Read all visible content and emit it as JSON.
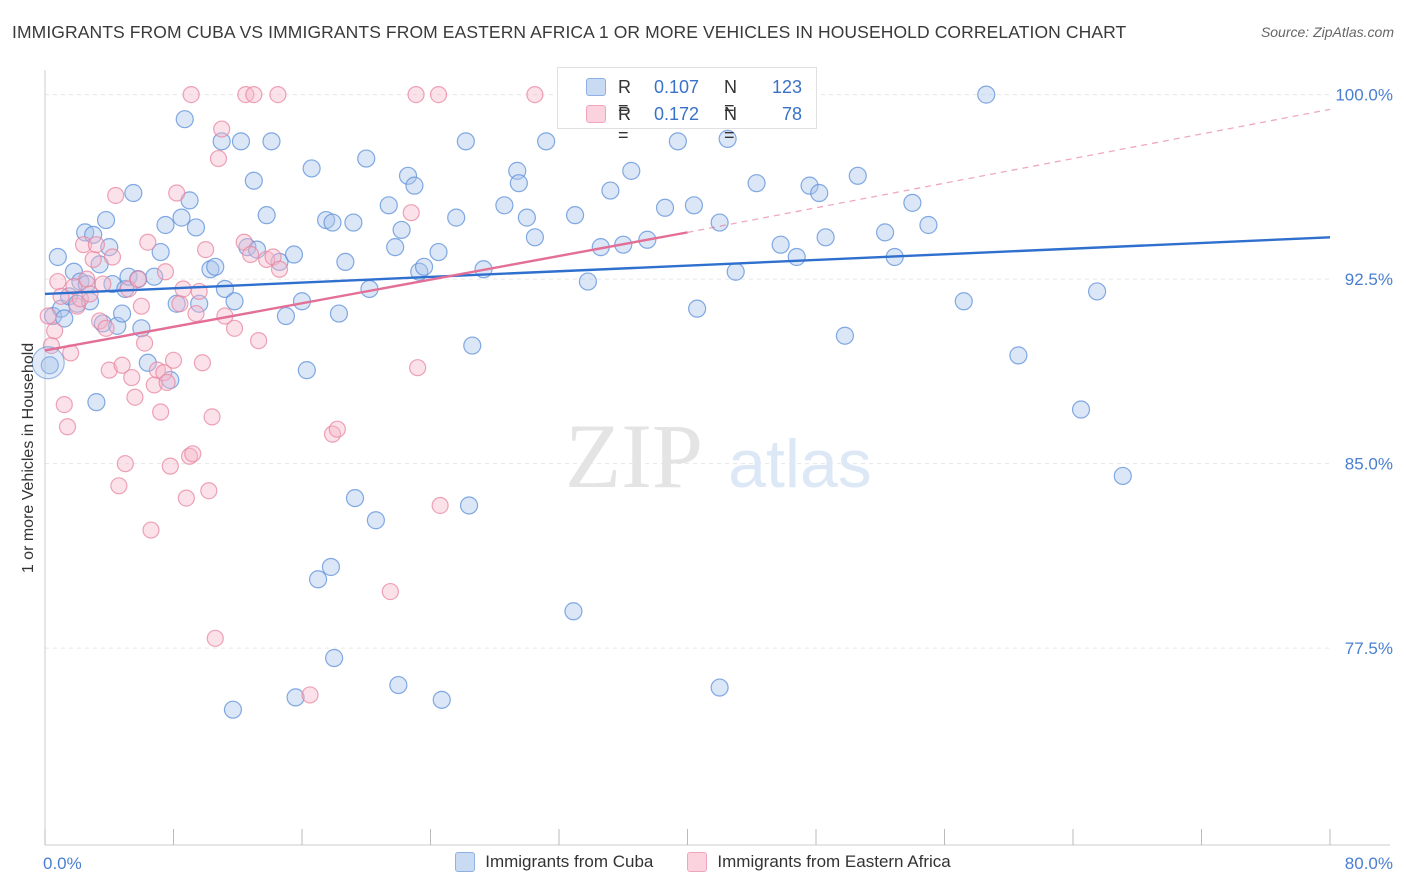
{
  "title": "IMMIGRANTS FROM CUBA VS IMMIGRANTS FROM EASTERN AFRICA 1 OR MORE VEHICLES IN HOUSEHOLD CORRELATION CHART",
  "source": "Source: ZipAtlas.com",
  "watermark": {
    "zip": "ZIP",
    "atlas": "atlas"
  },
  "stats": [
    {
      "r_label": "R =",
      "r_value": "0.107",
      "n_label": "N =",
      "n_value": "123",
      "color": "#a9c4ec"
    },
    {
      "r_label": "R =",
      "r_value": "0.172",
      "n_label": "N =",
      "n_value": "78",
      "color": "#f6b8cb"
    }
  ],
  "legend": [
    {
      "label": "Immigrants from Cuba",
      "color": "#a9c4ec"
    },
    {
      "label": "Immigrants from Eastern Africa",
      "color": "#f6b8cb"
    }
  ],
  "chart_data": {
    "type": "scatter",
    "title": "IMMIGRANTS FROM CUBA VS IMMIGRANTS FROM EASTERN AFRICA 1 OR MORE VEHICLES IN HOUSEHOLD CORRELATION CHART",
    "xlabel": "",
    "ylabel": "1 or more Vehicles in Household",
    "xlim": [
      0,
      80
    ],
    "ylim": [
      69.5,
      101
    ],
    "x_tick_labels": [
      "0.0%",
      "80.0%"
    ],
    "y_ticks": [
      {
        "value": 77.5,
        "label": "77.5%"
      },
      {
        "value": 85.0,
        "label": "85.0%"
      },
      {
        "value": 92.5,
        "label": "92.5%"
      },
      {
        "value": 100.0,
        "label": "100.0%"
      }
    ],
    "grid": true,
    "series": [
      {
        "name": "Immigrants from Cuba",
        "color": "#5b8fd9",
        "fill": "#a9c4ec",
        "trend": {
          "x": [
            0,
            80
          ],
          "y": [
            91.9,
            94.2
          ],
          "color": "#2f6fce",
          "dashed_from": null
        },
        "points": [
          [
            0.3,
            89.0
          ],
          [
            0.5,
            91.0
          ],
          [
            0.8,
            93.4
          ],
          [
            1.0,
            91.3
          ],
          [
            1.2,
            90.9
          ],
          [
            1.5,
            91.8
          ],
          [
            1.8,
            92.8
          ],
          [
            2.0,
            91.5
          ],
          [
            2.2,
            92.4
          ],
          [
            2.5,
            94.4
          ],
          [
            2.6,
            92.3
          ],
          [
            2.8,
            91.6
          ],
          [
            3.0,
            94.3
          ],
          [
            3.2,
            87.5
          ],
          [
            3.4,
            93.1
          ],
          [
            3.6,
            90.7
          ],
          [
            3.8,
            94.9
          ],
          [
            4.0,
            93.8
          ],
          [
            4.2,
            92.3
          ],
          [
            4.5,
            90.6
          ],
          [
            4.8,
            91.1
          ],
          [
            5.0,
            92.1
          ],
          [
            5.2,
            92.6
          ],
          [
            5.5,
            96.0
          ],
          [
            5.8,
            92.5
          ],
          [
            6.0,
            90.5
          ],
          [
            6.4,
            89.1
          ],
          [
            6.8,
            92.6
          ],
          [
            7.2,
            93.6
          ],
          [
            7.5,
            94.7
          ],
          [
            7.8,
            88.4
          ],
          [
            8.2,
            91.5
          ],
          [
            8.5,
            95.0
          ],
          [
            8.7,
            99.0
          ],
          [
            9.0,
            95.7
          ],
          [
            9.4,
            94.6
          ],
          [
            9.6,
            91.5
          ],
          [
            10.3,
            92.9
          ],
          [
            10.6,
            93.0
          ],
          [
            11.0,
            98.1
          ],
          [
            11.2,
            92.1
          ],
          [
            11.8,
            91.6
          ],
          [
            12.2,
            98.1
          ],
          [
            12.6,
            93.8
          ],
          [
            13.0,
            96.5
          ],
          [
            13.2,
            93.7
          ],
          [
            13.8,
            95.1
          ],
          [
            14.1,
            98.1
          ],
          [
            14.6,
            93.2
          ],
          [
            15.0,
            91.0
          ],
          [
            15.5,
            93.5
          ],
          [
            16.0,
            91.6
          ],
          [
            16.3,
            88.8
          ],
          [
            16.6,
            97.0
          ],
          [
            17.5,
            94.9
          ],
          [
            17.9,
            94.8
          ],
          [
            18.3,
            91.1
          ],
          [
            18.7,
            93.2
          ],
          [
            19.2,
            94.8
          ],
          [
            20.0,
            97.4
          ],
          [
            20.2,
            92.1
          ],
          [
            20.6,
            82.7
          ],
          [
            21.4,
            95.5
          ],
          [
            21.8,
            93.8
          ],
          [
            22.2,
            94.5
          ],
          [
            22.6,
            96.7
          ],
          [
            23.0,
            96.3
          ],
          [
            23.3,
            92.8
          ],
          [
            23.6,
            93.0
          ],
          [
            24.5,
            93.6
          ],
          [
            25.6,
            95.0
          ],
          [
            26.2,
            98.1
          ],
          [
            26.6,
            89.8
          ],
          [
            27.3,
            92.9
          ],
          [
            28.6,
            95.5
          ],
          [
            29.4,
            96.9
          ],
          [
            29.5,
            96.4
          ],
          [
            30.0,
            95.0
          ],
          [
            30.5,
            94.2
          ],
          [
            31.2,
            98.1
          ],
          [
            33.0,
            95.1
          ],
          [
            33.8,
            92.4
          ],
          [
            34.6,
            93.8
          ],
          [
            35.2,
            96.1
          ],
          [
            36.0,
            93.9
          ],
          [
            36.5,
            96.9
          ],
          [
            37.5,
            94.1
          ],
          [
            38.6,
            95.4
          ],
          [
            39.4,
            98.1
          ],
          [
            40.4,
            95.5
          ],
          [
            40.6,
            91.3
          ],
          [
            42.0,
            94.8
          ],
          [
            42.5,
            98.2
          ],
          [
            43.0,
            92.8
          ],
          [
            44.3,
            96.4
          ],
          [
            45.8,
            93.9
          ],
          [
            46.8,
            93.4
          ],
          [
            47.6,
            96.3
          ],
          [
            48.2,
            96.0
          ],
          [
            48.6,
            94.2
          ],
          [
            49.8,
            90.2
          ],
          [
            50.6,
            96.7
          ],
          [
            52.3,
            94.4
          ],
          [
            52.9,
            93.4
          ],
          [
            54.0,
            95.6
          ],
          [
            55.0,
            94.7
          ],
          [
            57.2,
            91.6
          ],
          [
            58.6,
            100.0
          ],
          [
            60.6,
            89.4
          ],
          [
            64.5,
            87.2
          ],
          [
            65.5,
            92.0
          ],
          [
            67.1,
            84.5
          ],
          [
            15.6,
            75.5
          ],
          [
            17.8,
            80.8
          ],
          [
            17.0,
            80.3
          ],
          [
            18.0,
            77.1
          ],
          [
            19.3,
            83.6
          ],
          [
            22.0,
            76.0
          ],
          [
            24.7,
            75.4
          ],
          [
            26.4,
            83.3
          ],
          [
            32.9,
            79.0
          ],
          [
            42.0,
            75.9
          ],
          [
            11.7,
            75.0
          ]
        ]
      },
      {
        "name": "Immigrants from Eastern Africa",
        "color": "#e8869f",
        "fill": "#f6b8cb",
        "trend": {
          "x": [
            0,
            40
          ],
          "y": [
            89.6,
            94.4
          ],
          "x_dash_end": 80,
          "y_dash_end": 99.4,
          "color": "#e36f96"
        },
        "points": [
          [
            0.2,
            91.0
          ],
          [
            0.4,
            89.8
          ],
          [
            0.6,
            90.4
          ],
          [
            0.8,
            92.4
          ],
          [
            1.0,
            91.8
          ],
          [
            1.2,
            87.4
          ],
          [
            1.4,
            86.5
          ],
          [
            1.6,
            89.5
          ],
          [
            1.8,
            92.2
          ],
          [
            2.0,
            91.4
          ],
          [
            2.2,
            91.7
          ],
          [
            2.4,
            93.9
          ],
          [
            2.6,
            92.5
          ],
          [
            2.8,
            91.9
          ],
          [
            3.0,
            93.3
          ],
          [
            3.2,
            93.9
          ],
          [
            3.4,
            90.8
          ],
          [
            3.6,
            92.3
          ],
          [
            3.8,
            90.5
          ],
          [
            4.0,
            88.8
          ],
          [
            4.2,
            93.4
          ],
          [
            4.4,
            95.9
          ],
          [
            4.6,
            84.1
          ],
          [
            4.8,
            89.0
          ],
          [
            5.0,
            85.0
          ],
          [
            5.2,
            92.1
          ],
          [
            5.4,
            88.5
          ],
          [
            5.6,
            87.7
          ],
          [
            5.8,
            92.5
          ],
          [
            6.0,
            91.4
          ],
          [
            6.2,
            89.9
          ],
          [
            6.4,
            94.0
          ],
          [
            6.6,
            82.3
          ],
          [
            6.8,
            88.2
          ],
          [
            7.0,
            88.8
          ],
          [
            7.2,
            87.1
          ],
          [
            7.4,
            88.7
          ],
          [
            7.6,
            88.3
          ],
          [
            7.8,
            84.9
          ],
          [
            8.0,
            89.2
          ],
          [
            8.2,
            96.0
          ],
          [
            8.4,
            91.5
          ],
          [
            8.6,
            92.1
          ],
          [
            8.8,
            83.6
          ],
          [
            9.0,
            85.3
          ],
          [
            9.2,
            85.4
          ],
          [
            9.4,
            91.1
          ],
          [
            9.6,
            92.0
          ],
          [
            9.8,
            89.1
          ],
          [
            10.0,
            93.7
          ],
          [
            10.2,
            83.9
          ],
          [
            10.4,
            86.9
          ],
          [
            10.6,
            77.9
          ],
          [
            10.8,
            97.4
          ],
          [
            11.0,
            98.6
          ],
          [
            11.2,
            91.0
          ],
          [
            11.8,
            90.5
          ],
          [
            12.4,
            94.0
          ],
          [
            12.8,
            93.5
          ],
          [
            13.3,
            90.0
          ],
          [
            13.8,
            93.3
          ],
          [
            14.2,
            93.4
          ],
          [
            14.6,
            92.9
          ],
          [
            9.1,
            100.0
          ],
          [
            12.5,
            100.0
          ],
          [
            13.0,
            100.0
          ],
          [
            14.5,
            100.0
          ],
          [
            23.1,
            100.0
          ],
          [
            24.5,
            100.0
          ],
          [
            30.5,
            100.0
          ],
          [
            17.9,
            86.2
          ],
          [
            18.2,
            86.4
          ],
          [
            22.8,
            95.2
          ],
          [
            23.2,
            88.9
          ],
          [
            24.6,
            83.3
          ],
          [
            16.5,
            75.6
          ],
          [
            21.5,
            79.8
          ],
          [
            7.5,
            92.8
          ]
        ]
      }
    ]
  }
}
